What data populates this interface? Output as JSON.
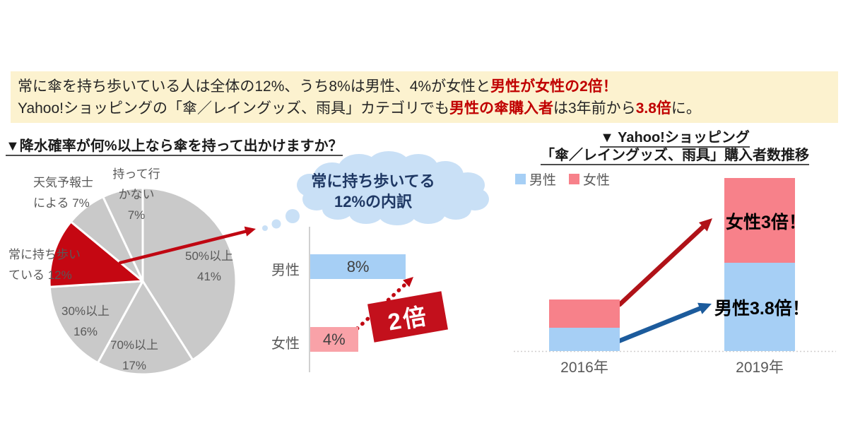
{
  "banner": {
    "line1": [
      {
        "text": "常に傘を持ち歩いている人は全体の12%、うち8%は男性、4%が女性と",
        "emphasis": false
      },
      {
        "text": "男性が女性の2倍！",
        "emphasis": true
      }
    ],
    "line2": [
      {
        "text": "Yahoo!ショッピングの「傘／レイングッズ、雨具」カテゴリでも",
        "emphasis": false
      },
      {
        "text": "男性の傘購入者",
        "emphasis": true
      },
      {
        "text": "は3年前から",
        "emphasis": false
      },
      {
        "text": "3.8倍",
        "emphasis": true
      },
      {
        "text": "に。",
        "emphasis": false
      }
    ]
  },
  "left_chart": {
    "title": "▼降水確率が何%以上なら傘を持って出かけますか？",
    "labels": {
      "no_carry": [
        "持って行",
        "かない",
        "7%"
      ],
      "forecaster": [
        "天気予報士",
        "による 7%"
      ],
      "always": [
        "常に持ち歩い",
        "ている 12%"
      ],
      "p50": [
        "50%以上",
        "41%"
      ],
      "p30": [
        "30%以上",
        "16%"
      ],
      "p70": [
        "70%以上",
        "17%"
      ]
    }
  },
  "middle_chart": {
    "bubble": [
      "常に持ち歩いてる",
      "12%の内訳"
    ],
    "categories": [
      "男性",
      "女性"
    ],
    "value_labels": [
      "8%",
      "4%"
    ],
    "badge": "2倍"
  },
  "right_chart": {
    "title": [
      "▼ Yahoo!ショッピング",
      "「傘／レイングッズ、雨具」購入者数推移"
    ],
    "legend": [
      "男性",
      "女性"
    ],
    "x_labels": [
      "2016年",
      "2019年"
    ],
    "annotations": {
      "female": "女性3倍！",
      "male": "男性3.8倍！"
    }
  },
  "colors": {
    "accent_red": "#C00712",
    "badge_red": "#C3101C",
    "right_arrow_red": "#B01218",
    "right_arrow_blue": "#1C5B9C",
    "pie_gray": "#C9C9C9",
    "pie_red": "#C50712",
    "male_blue": "#A6CFF5",
    "female_pink_light": "#F9A2A8",
    "female_pink": "#F7818A",
    "bubble_blue": "#C9E0F6",
    "bubble_text_navy": "#1F3864",
    "banner_bg": "#FCF2CF",
    "label_gray": "#595959"
  },
  "chart_data": [
    {
      "type": "pie",
      "title": "降水確率が何%以上なら傘を持って出かけますか？",
      "start": "12-oclock",
      "direction": "clockwise",
      "slices": [
        {
          "label": "50%以上",
          "value": 41,
          "color_key": "pie_gray"
        },
        {
          "label": "70%以上",
          "value": 17,
          "color_key": "pie_gray"
        },
        {
          "label": "30%以上",
          "value": 16,
          "color_key": "pie_gray"
        },
        {
          "label": "常に持ち歩いている",
          "value": 12,
          "color_key": "pie_red"
        },
        {
          "label": "天気予報士による",
          "value": 7,
          "color_key": "pie_gray"
        },
        {
          "label": "持って行かない",
          "value": 7,
          "color_key": "pie_gray"
        }
      ],
      "highlight": "常に持ち歩いている 12%"
    },
    {
      "type": "bar",
      "orientation": "horizontal",
      "title": "常に持ち歩いてる12%の内訳",
      "categories": [
        "男性",
        "女性"
      ],
      "values": [
        8,
        4
      ],
      "unit": "%",
      "value_labels": [
        "8%",
        "4%"
      ],
      "colors": [
        "#A6CFF5",
        "#F9A2A8"
      ],
      "annotation": "2倍"
    },
    {
      "type": "bar",
      "subtype": "stacked",
      "title": "Yahoo!ショッピング「傘／レイングッズ、雨具」購入者数推移",
      "categories": [
        "2016年",
        "2019年"
      ],
      "series": [
        {
          "name": "男性",
          "values": [
            1,
            3.8
          ],
          "color": "#A6CFF5"
        },
        {
          "name": "女性",
          "values": [
            1,
            3
          ],
          "color": "#F7818A"
        }
      ],
      "unit": "relative to 2016 (=1)",
      "annotations": [
        "女性3倍！",
        "男性3.8倍！"
      ],
      "legend_position": "top-left",
      "grid": false
    }
  ]
}
